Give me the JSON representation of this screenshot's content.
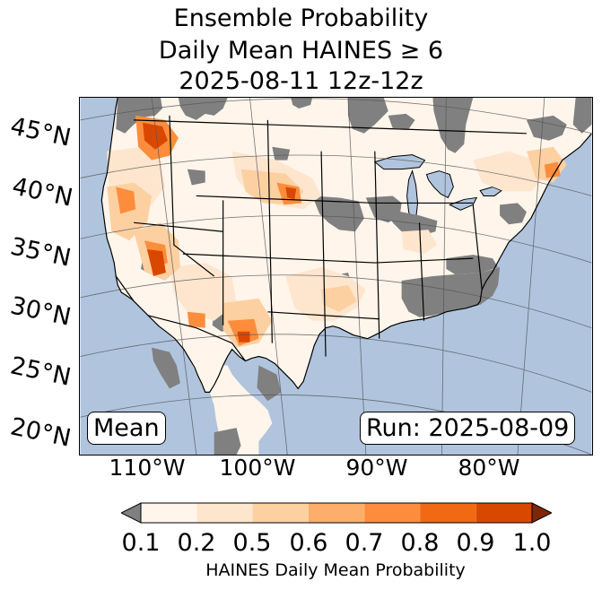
{
  "title": {
    "line1": "Ensemble Probability",
    "line2": "Daily Mean HAINES ≥ 6",
    "line3": "2025-08-11 12z-12z"
  },
  "map": {
    "lat_labels": [
      "45°N",
      "40°N",
      "35°N",
      "30°N",
      "25°N",
      "20°N"
    ],
    "lon_labels": [
      "110°W",
      "100°W",
      "90°W",
      "80°W"
    ],
    "mean_label": "Mean",
    "run_label": "Run: 2025-08-09",
    "colors": {
      "ocean": "#b0c4de",
      "no_data": "#808080",
      "border": "#000000",
      "graticule": "#555555"
    }
  },
  "colorbar": {
    "label": "HAINES Daily Mean Probability",
    "ticks": [
      "0.1",
      "0.2",
      "0.5",
      "0.6",
      "0.7",
      "0.8",
      "0.9",
      "1.0"
    ],
    "under_color": "#808080",
    "over_color": "#7f2704",
    "colors": [
      "#fff5eb",
      "#fee6ce",
      "#fdd0a2",
      "#fdae6b",
      "#fd8d3c",
      "#f16913",
      "#d94801"
    ]
  }
}
